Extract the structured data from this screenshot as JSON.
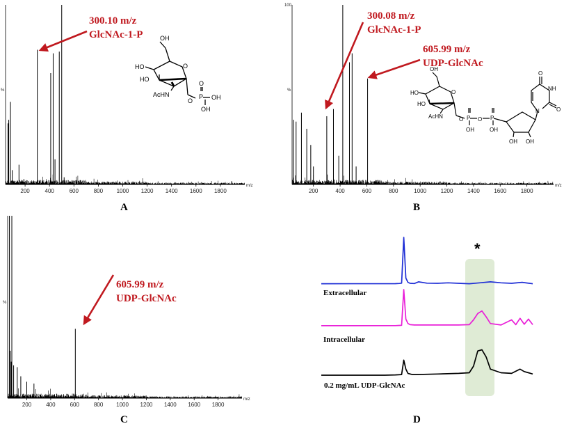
{
  "chart_data": [
    {
      "panel": "A",
      "type": "bar",
      "xlabel": "m/z",
      "ylabel": "%",
      "xlim": [
        40,
        2000
      ],
      "ylim": [
        0,
        100
      ],
      "x_ticks": [
        200,
        400,
        600,
        800,
        1000,
        1200,
        1400,
        1600,
        1800
      ],
      "peaks": [
        {
          "x": 60,
          "y": 34
        },
        {
          "x": 66,
          "y": 36
        },
        {
          "x": 80,
          "y": 46
        },
        {
          "x": 95,
          "y": 8
        },
        {
          "x": 150,
          "y": 11
        },
        {
          "x": 190,
          "y": 3
        },
        {
          "x": 300.1,
          "y": 75
        },
        {
          "x": 410,
          "y": 62
        },
        {
          "x": 430,
          "y": 73
        },
        {
          "x": 445,
          "y": 14
        },
        {
          "x": 480,
          "y": 74
        },
        {
          "x": 500,
          "y": 100
        },
        {
          "x": 520,
          "y": 4
        }
      ],
      "annotations": [
        {
          "mz": "300.10 m/z",
          "name": "GlcNAc-1-P",
          "x": 300.1,
          "y": 75
        }
      ],
      "structure_labels": [
        "OH",
        "HO",
        "HO",
        "AcHN",
        "O",
        "O",
        "P",
        "OH",
        "O",
        "OH"
      ]
    },
    {
      "panel": "B",
      "type": "bar",
      "xlabel": "m/z",
      "ylabel": "%",
      "ylim_label": "100",
      "xlim": [
        40,
        2000
      ],
      "ylim": [
        0,
        100
      ],
      "x_ticks": [
        200,
        400,
        600,
        800,
        1000,
        1200,
        1400,
        1600,
        1800
      ],
      "peaks": [
        {
          "x": 50,
          "y": 36
        },
        {
          "x": 70,
          "y": 35
        },
        {
          "x": 110,
          "y": 40
        },
        {
          "x": 150,
          "y": 31
        },
        {
          "x": 180,
          "y": 22
        },
        {
          "x": 200,
          "y": 10
        },
        {
          "x": 300.08,
          "y": 38
        },
        {
          "x": 350,
          "y": 42
        },
        {
          "x": 390,
          "y": 16
        },
        {
          "x": 420,
          "y": 100
        },
        {
          "x": 470,
          "y": 68
        },
        {
          "x": 490,
          "y": 73
        },
        {
          "x": 520,
          "y": 10
        },
        {
          "x": 605.99,
          "y": 59
        }
      ],
      "annotations": [
        {
          "mz": "300.08 m/z",
          "name": "GlcNAc-1-P",
          "x": 300.08,
          "y": 38
        },
        {
          "mz": "605.99 m/z",
          "name": "UDP-GlcNAc",
          "x": 605.99,
          "y": 59
        }
      ],
      "structure_labels": [
        "OH",
        "HO",
        "HO",
        "AcHN",
        "O",
        "O",
        "P",
        "O",
        "P",
        "OH",
        "OH",
        "OH",
        "OH",
        "N",
        "NH",
        "O",
        "O"
      ]
    },
    {
      "panel": "C",
      "type": "bar",
      "xlabel": "m/z",
      "ylabel": "%",
      "xlim": [
        40,
        2000
      ],
      "ylim": [
        0,
        100
      ],
      "x_ticks": [
        200,
        400,
        600,
        800,
        1000,
        1200,
        1400,
        1600,
        1800
      ],
      "peaks": [
        {
          "x": 55,
          "y": 100
        },
        {
          "x": 62,
          "y": 26
        },
        {
          "x": 70,
          "y": 20
        },
        {
          "x": 75,
          "y": 100
        },
        {
          "x": 90,
          "y": 18
        },
        {
          "x": 120,
          "y": 17
        },
        {
          "x": 150,
          "y": 12
        },
        {
          "x": 200,
          "y": 9
        },
        {
          "x": 260,
          "y": 8
        },
        {
          "x": 605.99,
          "y": 38
        }
      ],
      "annotations": [
        {
          "mz": "605.99 m/z",
          "name": "UDP-GlcNAc",
          "x": 605.99,
          "y": 38
        }
      ]
    },
    {
      "panel": "D",
      "type": "line",
      "highlight_mark": "*",
      "xlim": [
        0,
        100
      ],
      "series": [
        {
          "name": "Extracellular",
          "color": "#1f2fd6",
          "x": [
            0,
            35,
            37,
            38,
            39,
            40,
            41,
            42,
            44,
            46,
            50,
            55,
            60,
            65,
            70,
            75,
            80,
            85,
            90,
            95,
            100
          ],
          "y": [
            2,
            2.2,
            2.6,
            3.3,
            100,
            14,
            5,
            3,
            2.5,
            6,
            3.2,
            3,
            4,
            3,
            2,
            4,
            6,
            4,
            3,
            5,
            2
          ]
        },
        {
          "name": "Intracellular",
          "color": "#e91ed8",
          "x": [
            0,
            35,
            37,
            38,
            39,
            40,
            41,
            42,
            44,
            46,
            50,
            55,
            60,
            65,
            70,
            72,
            74,
            76,
            78,
            80,
            85,
            90,
            92,
            94,
            96,
            98,
            100
          ],
          "y": [
            2,
            2.3,
            2.8,
            3.3,
            100,
            20,
            8,
            5,
            4,
            4,
            4,
            4,
            4,
            4,
            5,
            18,
            35,
            42,
            26,
            8,
            4,
            18,
            5,
            22,
            6,
            20,
            5
          ]
        },
        {
          "name": "0.2 mg/mL UDP-GlcNAc",
          "color": "#000000",
          "x": [
            0,
            30,
            35,
            38,
            39,
            40,
            41,
            43,
            45,
            55,
            65,
            70,
            72,
            74,
            76,
            78,
            80,
            85,
            90,
            94,
            96,
            98,
            100
          ],
          "y": [
            0,
            0,
            0.5,
            1,
            25,
            10,
            3,
            1,
            1,
            2,
            3,
            4,
            15,
            40,
            42,
            30,
            10,
            4,
            3,
            10,
            6,
            4,
            2
          ]
        }
      ]
    }
  ],
  "panel_labels": [
    "A",
    "B",
    "C",
    "D"
  ],
  "colors": {
    "annotation": "#c0191f",
    "highlight_band": "#dbe9d0"
  }
}
